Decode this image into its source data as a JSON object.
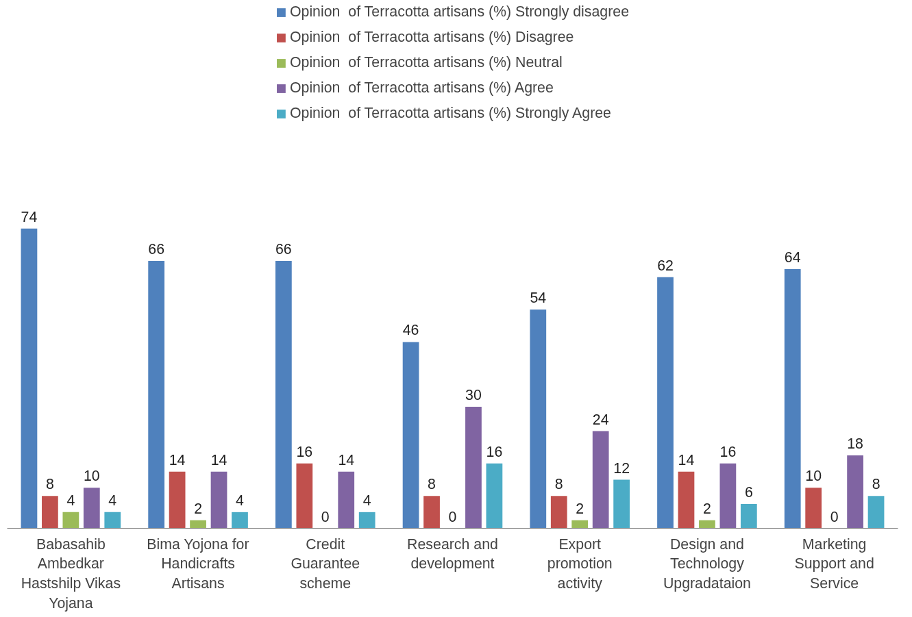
{
  "chart_data": {
    "type": "bar",
    "categories": [
      "Babasahib Ambedkar Hastshilp Vikas Yojana",
      "Bima Yojona for Handicrafts Artisans",
      "Credit Guarantee scheme",
      "Research and development",
      "Export promotion activity",
      "Design and Technology Upgradataion",
      "Marketing Support and Service"
    ],
    "series": [
      {
        "name": "Opinion  of Terracotta artisans (%) Strongly disagree",
        "color": "#4f81bd",
        "values": [
          74,
          66,
          66,
          46,
          54,
          62,
          64
        ]
      },
      {
        "name": "Opinion  of Terracotta artisans (%) Disagree",
        "color": "#c0504d",
        "values": [
          8,
          14,
          16,
          8,
          8,
          14,
          10
        ]
      },
      {
        "name": "Opinion  of Terracotta artisans (%) Neutral",
        "color": "#9bbb59",
        "values": [
          4,
          2,
          0,
          0,
          2,
          2,
          0
        ]
      },
      {
        "name": "Opinion  of Terracotta artisans (%) Agree",
        "color": "#8064a2",
        "values": [
          10,
          14,
          14,
          30,
          24,
          16,
          18
        ]
      },
      {
        "name": "Opinion  of Terracotta artisans (%) Strongly Agree",
        "color": "#4bacc6",
        "values": [
          4,
          4,
          4,
          16,
          12,
          6,
          8
        ]
      }
    ],
    "data_labels": true,
    "legend": "top",
    "grid": false
  }
}
